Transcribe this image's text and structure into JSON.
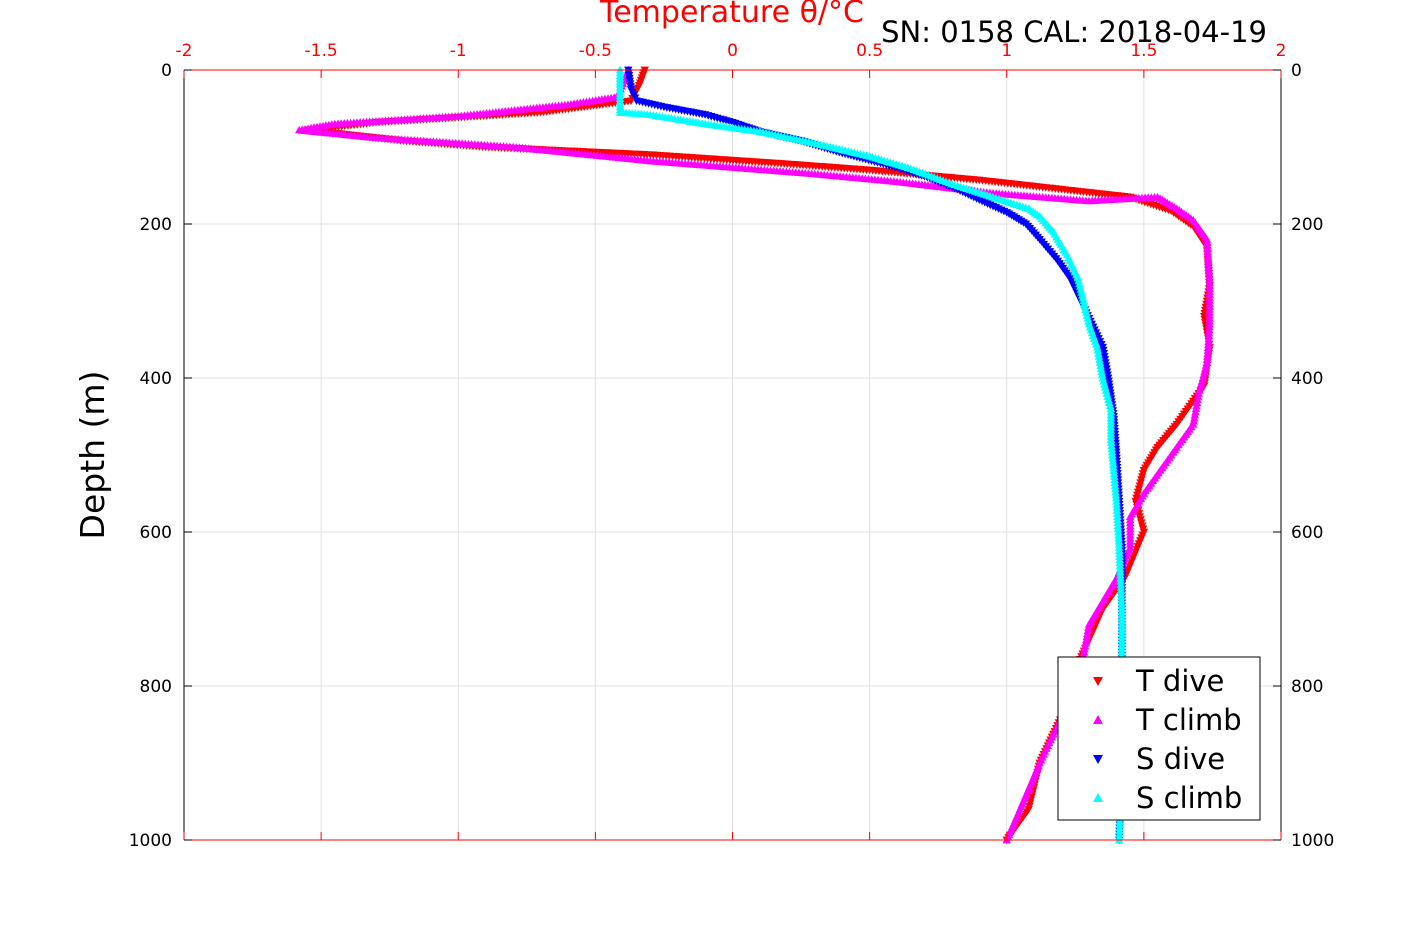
{
  "chart_data": {
    "type": "scatter",
    "title": "",
    "xlabel": "Temperature θ/°C",
    "ylabel": "Depth (m)",
    "annotation": "SN: 0158  CAL: 2018-04-19",
    "xlim": [
      -2,
      2
    ],
    "ylim": [
      0,
      1000
    ],
    "y_reversed": true,
    "grid": true,
    "legend_position": "bottom-right",
    "x_ticks": [
      "-2",
      "-1.5",
      "-1",
      "-0.5",
      "0",
      "0.5",
      "1",
      "1.5",
      "2"
    ],
    "y_ticks": [
      "0",
      "200",
      "400",
      "600",
      "800",
      "1000"
    ],
    "colors": {
      "axis_top": "#ff0000",
      "grid": "#e0e0e0"
    },
    "series": [
      {
        "name": "T dive",
        "color": "#ff0000",
        "marker": "triangle-down",
        "points": [
          [
            -0.32,
            0
          ],
          [
            -0.34,
            20
          ],
          [
            -0.37,
            40
          ],
          [
            -0.7,
            55
          ],
          [
            -1.3,
            68
          ],
          [
            -1.55,
            78
          ],
          [
            -1.2,
            92
          ],
          [
            -0.9,
            100
          ],
          [
            -0.3,
            110
          ],
          [
            0.2,
            122
          ],
          [
            0.5,
            130
          ],
          [
            0.9,
            143
          ],
          [
            1.2,
            155
          ],
          [
            1.45,
            165
          ],
          [
            1.6,
            183
          ],
          [
            1.68,
            203
          ],
          [
            1.73,
            230
          ],
          [
            1.74,
            280
          ],
          [
            1.72,
            320
          ],
          [
            1.74,
            360
          ],
          [
            1.72,
            410
          ],
          [
            1.62,
            460
          ],
          [
            1.55,
            490
          ],
          [
            1.5,
            520
          ],
          [
            1.47,
            560
          ],
          [
            1.5,
            600
          ],
          [
            1.43,
            660
          ],
          [
            1.35,
            700
          ],
          [
            1.3,
            740
          ],
          [
            1.25,
            780
          ],
          [
            1.2,
            840
          ],
          [
            1.12,
            900
          ],
          [
            1.08,
            960
          ],
          [
            1.0,
            1000
          ]
        ]
      },
      {
        "name": "T climb",
        "color": "#ff00ff",
        "marker": "triangle-up",
        "points": [
          [
            -0.38,
            0
          ],
          [
            -0.42,
            35
          ],
          [
            -0.6,
            45
          ],
          [
            -1.0,
            60
          ],
          [
            -1.45,
            70
          ],
          [
            -1.58,
            78
          ],
          [
            -1.3,
            88
          ],
          [
            -0.8,
            100
          ],
          [
            -0.3,
            118
          ],
          [
            0.3,
            135
          ],
          [
            0.6,
            145
          ],
          [
            0.95,
            160
          ],
          [
            1.3,
            170
          ],
          [
            1.55,
            165
          ],
          [
            1.62,
            180
          ],
          [
            1.68,
            195
          ],
          [
            1.73,
            220
          ],
          [
            1.74,
            280
          ],
          [
            1.74,
            330
          ],
          [
            1.73,
            380
          ],
          [
            1.7,
            420
          ],
          [
            1.68,
            460
          ],
          [
            1.6,
            500
          ],
          [
            1.5,
            550
          ],
          [
            1.45,
            580
          ],
          [
            1.45,
            620
          ],
          [
            1.4,
            660
          ],
          [
            1.3,
            720
          ],
          [
            1.27,
            780
          ],
          [
            1.2,
            840
          ],
          [
            1.12,
            900
          ],
          [
            1.06,
            950
          ],
          [
            1.0,
            1000
          ]
        ]
      },
      {
        "name": "S dive",
        "color": "#0000ff",
        "marker": "triangle-down",
        "points": [
          [
            -0.38,
            0
          ],
          [
            -0.37,
            25
          ],
          [
            -0.35,
            40
          ],
          [
            -0.25,
            48
          ],
          [
            -0.1,
            58
          ],
          [
            0.0,
            68
          ],
          [
            0.1,
            80
          ],
          [
            0.25,
            92
          ],
          [
            0.4,
            108
          ],
          [
            0.55,
            122
          ],
          [
            0.7,
            138
          ],
          [
            0.82,
            155
          ],
          [
            0.92,
            172
          ],
          [
            1.0,
            185
          ],
          [
            1.07,
            200
          ],
          [
            1.12,
            220
          ],
          [
            1.18,
            245
          ],
          [
            1.23,
            270
          ],
          [
            1.27,
            300
          ],
          [
            1.31,
            330
          ],
          [
            1.35,
            360
          ],
          [
            1.37,
            400
          ],
          [
            1.39,
            450
          ],
          [
            1.4,
            500
          ],
          [
            1.41,
            560
          ],
          [
            1.42,
            620
          ],
          [
            1.42,
            700
          ],
          [
            1.42,
            800
          ],
          [
            1.42,
            900
          ],
          [
            1.41,
            1000
          ]
        ]
      },
      {
        "name": "S climb",
        "color": "#00ffff",
        "marker": "triangle-up",
        "points": [
          [
            -0.41,
            0
          ],
          [
            -0.41,
            30
          ],
          [
            -0.41,
            55
          ],
          [
            -0.3,
            58
          ],
          [
            -0.1,
            70
          ],
          [
            0.1,
            80
          ],
          [
            0.3,
            95
          ],
          [
            0.5,
            112
          ],
          [
            0.65,
            128
          ],
          [
            0.8,
            148
          ],
          [
            0.95,
            165
          ],
          [
            1.08,
            180
          ],
          [
            1.12,
            190
          ],
          [
            1.17,
            210
          ],
          [
            1.22,
            240
          ],
          [
            1.26,
            270
          ],
          [
            1.28,
            300
          ],
          [
            1.3,
            330
          ],
          [
            1.33,
            360
          ],
          [
            1.35,
            400
          ],
          [
            1.38,
            440
          ],
          [
            1.38,
            480
          ],
          [
            1.39,
            520
          ],
          [
            1.4,
            560
          ],
          [
            1.41,
            620
          ],
          [
            1.42,
            700
          ],
          [
            1.42,
            800
          ],
          [
            1.42,
            900
          ],
          [
            1.41,
            1000
          ]
        ]
      }
    ]
  }
}
